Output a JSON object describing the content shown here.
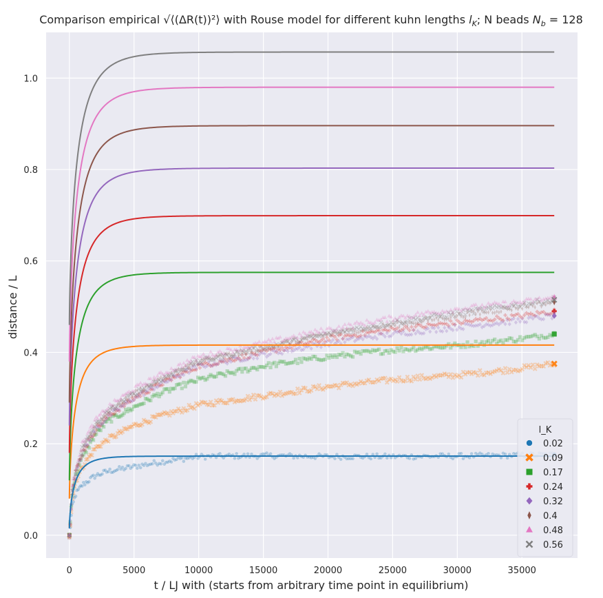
{
  "chart_data": {
    "type": "line",
    "title": "Comparison empirical √⟨(ΔR(t))²⟩ with Rouse model for different kuhn lengths l_K; N beads N_b = 128",
    "title_parts": {
      "prefix": "Comparison empirical ",
      "math": "√⟨(ΔR(t))²⟩",
      "middle": " with Rouse model for different kuhn lengths ",
      "lk": "l",
      "lk_sub": "K",
      "nb_prefix": "; N beads ",
      "nb": "N",
      "nb_sub": "b",
      "nb_value": " = 128"
    },
    "xlabel": "t / LJ with (starts from arbitrary time point in equilibrium)",
    "ylabel": "distance / L",
    "xlim": [
      -1800,
      39300
    ],
    "ylim": [
      -0.05,
      1.1
    ],
    "xticks": [
      0,
      5000,
      10000,
      15000,
      20000,
      25000,
      30000,
      35000
    ],
    "yticks": [
      0.0,
      0.2,
      0.4,
      0.6,
      0.8,
      1.0
    ],
    "xtick_labels": [
      "0",
      "5000",
      "10000",
      "15000",
      "20000",
      "25000",
      "30000",
      "35000"
    ],
    "ytick_labels": [
      "0.0",
      "0.2",
      "0.4",
      "0.6",
      "0.8",
      "1.0"
    ],
    "grid": true,
    "legend": {
      "title": "l_K",
      "placement": "lower-right"
    },
    "t_max": 37500,
    "series": [
      {
        "name": "0.02",
        "color": "#1f77b4",
        "marker": "circle",
        "rouse_plateau": 0.173,
        "rouse_tau": 450,
        "rouse_start": 0.015,
        "emp": [
          [
            0,
            0.0
          ],
          [
            200,
            0.06
          ],
          [
            500,
            0.09
          ],
          [
            1000,
            0.11
          ],
          [
            2000,
            0.13
          ],
          [
            3000,
            0.14
          ],
          [
            5000,
            0.15
          ],
          [
            7000,
            0.16
          ],
          [
            10000,
            0.172
          ],
          [
            15000,
            0.174
          ],
          [
            20000,
            0.172
          ],
          [
            25000,
            0.172
          ],
          [
            30000,
            0.173
          ],
          [
            35000,
            0.175
          ],
          [
            37500,
            0.176
          ]
        ]
      },
      {
        "name": "0.09",
        "color": "#ff7f0e",
        "marker": "x-thick",
        "rouse_plateau": 0.416,
        "rouse_tau": 550,
        "rouse_start": 0.08,
        "emp": [
          [
            0,
            0.0
          ],
          [
            200,
            0.08
          ],
          [
            500,
            0.12
          ],
          [
            1000,
            0.15
          ],
          [
            2000,
            0.19
          ],
          [
            3000,
            0.21
          ],
          [
            5000,
            0.24
          ],
          [
            7000,
            0.26
          ],
          [
            10000,
            0.285
          ],
          [
            15000,
            0.305
          ],
          [
            20000,
            0.325
          ],
          [
            25000,
            0.34
          ],
          [
            30000,
            0.35
          ],
          [
            35000,
            0.365
          ],
          [
            37500,
            0.375
          ]
        ]
      },
      {
        "name": "0.17",
        "color": "#2ca02c",
        "marker": "square",
        "rouse_plateau": 0.575,
        "rouse_tau": 600,
        "rouse_start": 0.12,
        "emp": [
          [
            0,
            0.0
          ],
          [
            200,
            0.09
          ],
          [
            500,
            0.13
          ],
          [
            1000,
            0.17
          ],
          [
            2000,
            0.22
          ],
          [
            3000,
            0.25
          ],
          [
            5000,
            0.28
          ],
          [
            7000,
            0.31
          ],
          [
            10000,
            0.34
          ],
          [
            15000,
            0.37
          ],
          [
            20000,
            0.39
          ],
          [
            25000,
            0.405
          ],
          [
            30000,
            0.415
          ],
          [
            35000,
            0.43
          ],
          [
            37500,
            0.44
          ]
        ]
      },
      {
        "name": "0.24",
        "color": "#d62728",
        "marker": "plus",
        "rouse_plateau": 0.699,
        "rouse_tau": 620,
        "rouse_start": 0.18,
        "emp": [
          [
            0,
            0.0
          ],
          [
            200,
            0.09
          ],
          [
            500,
            0.14
          ],
          [
            1000,
            0.18
          ],
          [
            2000,
            0.23
          ],
          [
            3000,
            0.26
          ],
          [
            5000,
            0.3
          ],
          [
            7000,
            0.33
          ],
          [
            10000,
            0.37
          ],
          [
            15000,
            0.4
          ],
          [
            20000,
            0.43
          ],
          [
            25000,
            0.45
          ],
          [
            30000,
            0.465
          ],
          [
            35000,
            0.48
          ],
          [
            37500,
            0.49
          ]
        ]
      },
      {
        "name": "0.32",
        "color": "#9467bd",
        "marker": "diamond",
        "rouse_plateau": 0.803,
        "rouse_tau": 640,
        "rouse_start": 0.24,
        "emp": [
          [
            0,
            0.0
          ],
          [
            200,
            0.09
          ],
          [
            500,
            0.14
          ],
          [
            1000,
            0.18
          ],
          [
            2000,
            0.23
          ],
          [
            3000,
            0.26
          ],
          [
            5000,
            0.3
          ],
          [
            7000,
            0.33
          ],
          [
            10000,
            0.37
          ],
          [
            15000,
            0.395
          ],
          [
            20000,
            0.42
          ],
          [
            25000,
            0.44
          ],
          [
            30000,
            0.455
          ],
          [
            35000,
            0.47
          ],
          [
            37500,
            0.48
          ]
        ]
      },
      {
        "name": "0.4",
        "color": "#8c564b",
        "marker": "thin-diamond",
        "rouse_plateau": 0.896,
        "rouse_tau": 650,
        "rouse_start": 0.29,
        "emp": [
          [
            0,
            0.0
          ],
          [
            200,
            0.09
          ],
          [
            500,
            0.14
          ],
          [
            1000,
            0.19
          ],
          [
            2000,
            0.24
          ],
          [
            3000,
            0.27
          ],
          [
            5000,
            0.31
          ],
          [
            7000,
            0.34
          ],
          [
            10000,
            0.38
          ],
          [
            15000,
            0.41
          ],
          [
            20000,
            0.44
          ],
          [
            25000,
            0.46
          ],
          [
            30000,
            0.48
          ],
          [
            35000,
            0.5
          ],
          [
            37500,
            0.51
          ]
        ]
      },
      {
        "name": "0.48",
        "color": "#e377c2",
        "marker": "triangle",
        "rouse_plateau": 0.98,
        "rouse_tau": 660,
        "rouse_start": 0.38,
        "emp": [
          [
            0,
            0.0
          ],
          [
            200,
            0.1
          ],
          [
            500,
            0.15
          ],
          [
            1000,
            0.2
          ],
          [
            2000,
            0.25
          ],
          [
            3000,
            0.28
          ],
          [
            5000,
            0.32
          ],
          [
            7000,
            0.35
          ],
          [
            10000,
            0.39
          ],
          [
            15000,
            0.42
          ],
          [
            20000,
            0.45
          ],
          [
            25000,
            0.475
          ],
          [
            30000,
            0.495
          ],
          [
            35000,
            0.51
          ],
          [
            37500,
            0.52
          ]
        ]
      },
      {
        "name": "0.56",
        "color": "#7f7f7f",
        "marker": "x-thin",
        "rouse_plateau": 1.057,
        "rouse_tau": 670,
        "rouse_start": 0.46,
        "emp": [
          [
            0,
            0.0
          ],
          [
            200,
            0.09
          ],
          [
            500,
            0.14
          ],
          [
            1000,
            0.19
          ],
          [
            2000,
            0.24
          ],
          [
            3000,
            0.27
          ],
          [
            5000,
            0.31
          ],
          [
            7000,
            0.34
          ],
          [
            10000,
            0.38
          ],
          [
            15000,
            0.41
          ],
          [
            20000,
            0.44
          ],
          [
            25000,
            0.465
          ],
          [
            30000,
            0.485
          ],
          [
            35000,
            0.505
          ],
          [
            37500,
            0.515
          ]
        ]
      }
    ]
  }
}
